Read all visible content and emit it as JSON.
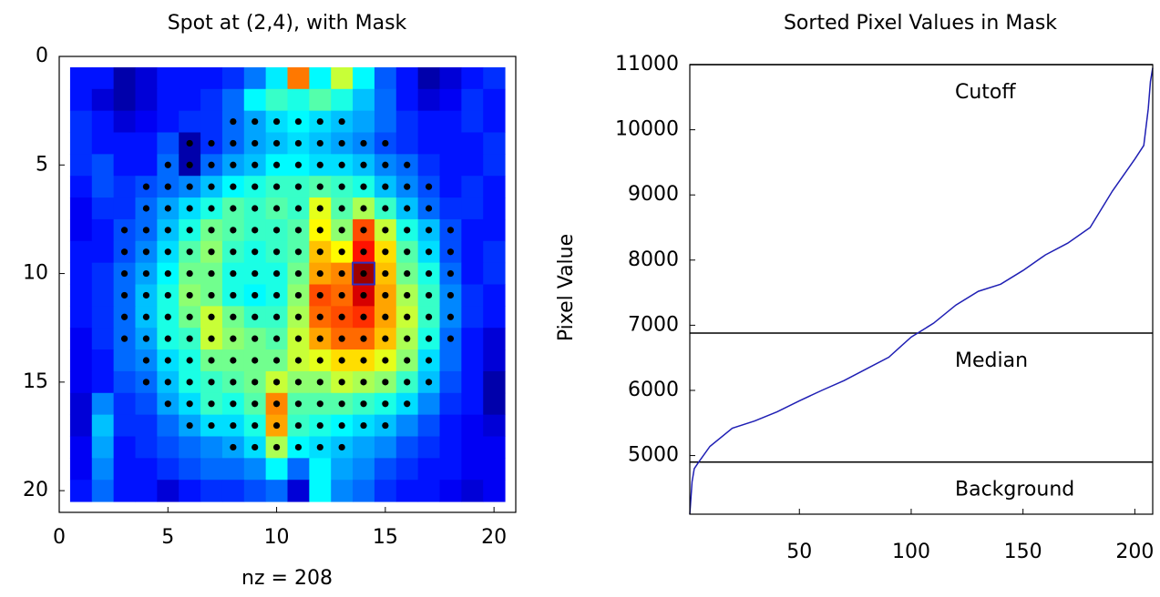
{
  "chart_data": [
    {
      "type": "heatmap",
      "title": "Spot at (2,4), with Mask",
      "xlabel": "nz = 208",
      "xlim": [
        0,
        21
      ],
      "ylim": [
        0,
        21
      ],
      "xticks": [
        0,
        5,
        10,
        15,
        20
      ],
      "yticks": [
        0,
        5,
        10,
        15,
        20
      ],
      "y_reversed": true,
      "colormap": "jet",
      "clim": [
        4000,
        11000
      ],
      "values": [
        [
          5000,
          5000,
          4300,
          4600,
          5000,
          5000,
          5000,
          5200,
          5700,
          6500,
          9300,
          6600,
          8000,
          6600,
          5500,
          5000,
          4300,
          4600,
          5000,
          5200
        ],
        [
          5000,
          4600,
          4300,
          4600,
          5000,
          5000,
          5200,
          5600,
          6600,
          7000,
          6800,
          7200,
          6800,
          6200,
          5600,
          5000,
          4600,
          4800,
          5200,
          5000
        ],
        [
          5200,
          5000,
          4600,
          4800,
          5000,
          5200,
          5200,
          5600,
          6000,
          6400,
          6600,
          6400,
          6200,
          6000,
          5600,
          5200,
          5000,
          5000,
          5200,
          5000
        ],
        [
          5200,
          5000,
          5000,
          5000,
          5400,
          4300,
          5200,
          5600,
          6000,
          6200,
          6400,
          6200,
          6000,
          5800,
          5400,
          5200,
          5000,
          5000,
          5000,
          5200
        ],
        [
          5200,
          5400,
          5000,
          5000,
          5600,
          4300,
          5600,
          6000,
          6200,
          6600,
          6600,
          6400,
          6400,
          6200,
          5800,
          5600,
          5200,
          5000,
          5000,
          5200
        ],
        [
          5000,
          5400,
          5200,
          5400,
          5600,
          5800,
          6200,
          6600,
          6800,
          7000,
          7000,
          7200,
          7000,
          6800,
          6200,
          5800,
          5400,
          5000,
          5200,
          5000
        ],
        [
          4800,
          5200,
          5200,
          5600,
          6000,
          6400,
          6800,
          7200,
          7000,
          7200,
          7000,
          8200,
          7200,
          7800,
          7000,
          6200,
          5600,
          5200,
          5200,
          5000
        ],
        [
          4800,
          5000,
          5400,
          5600,
          6200,
          6800,
          7400,
          7200,
          7000,
          7000,
          7200,
          8400,
          7600,
          9600,
          8000,
          6800,
          6200,
          5400,
          5000,
          5000
        ],
        [
          5000,
          5000,
          5400,
          5800,
          6400,
          7200,
          7600,
          7000,
          6800,
          7000,
          7200,
          8800,
          8400,
          10000,
          8600,
          7200,
          6400,
          5400,
          5000,
          5200
        ],
        [
          5000,
          5200,
          5600,
          6000,
          6600,
          7400,
          7400,
          6800,
          6800,
          6800,
          7400,
          9000,
          9200,
          10800,
          8800,
          7400,
          6800,
          5600,
          5000,
          5200
        ],
        [
          5000,
          5200,
          5600,
          6200,
          6800,
          7600,
          7400,
          6800,
          6600,
          6800,
          7600,
          9600,
          9400,
          10400,
          9000,
          7800,
          7000,
          5800,
          5200,
          5000
        ],
        [
          5000,
          5200,
          5600,
          6200,
          6800,
          7400,
          8000,
          7400,
          7000,
          7000,
          7800,
          9400,
          9600,
          9800,
          9000,
          8000,
          7000,
          5800,
          5200,
          5000
        ],
        [
          4800,
          5200,
          5600,
          6000,
          6800,
          7000,
          8000,
          7600,
          7400,
          7200,
          8000,
          9000,
          9400,
          9400,
          8800,
          7800,
          6800,
          5600,
          5000,
          4600
        ],
        [
          4800,
          5000,
          5600,
          5800,
          6400,
          6800,
          7400,
          7400,
          7400,
          7400,
          8000,
          8200,
          8600,
          8600,
          8200,
          7600,
          6400,
          5600,
          5000,
          4600
        ],
        [
          4800,
          5000,
          5400,
          5600,
          6200,
          6800,
          7000,
          7200,
          7400,
          8000,
          7600,
          7600,
          8000,
          7800,
          7600,
          7000,
          6200,
          5400,
          5000,
          4300
        ],
        [
          4600,
          5800,
          5200,
          5400,
          6000,
          6400,
          7000,
          6800,
          7200,
          9200,
          7200,
          7200,
          7200,
          7000,
          6800,
          6400,
          5800,
          5200,
          5000,
          4300
        ],
        [
          4600,
          6200,
          5200,
          5200,
          5600,
          6000,
          6400,
          6400,
          6800,
          9000,
          7000,
          6800,
          6600,
          6400,
          6200,
          5800,
          5400,
          5000,
          4800,
          4600
        ],
        [
          4800,
          6000,
          5000,
          5200,
          5400,
          5600,
          5800,
          6000,
          6400,
          7800,
          6600,
          6400,
          6200,
          6000,
          5800,
          5400,
          5200,
          5000,
          4800,
          4800
        ],
        [
          4800,
          5800,
          5000,
          5000,
          5200,
          5400,
          5600,
          5600,
          5800,
          6600,
          5600,
          6600,
          6000,
          5800,
          5400,
          5200,
          5000,
          5000,
          4800,
          4800
        ],
        [
          5000,
          5600,
          5000,
          5000,
          4600,
          5000,
          5200,
          5200,
          5400,
          5600,
          4600,
          6600,
          5800,
          5600,
          5200,
          5000,
          5000,
          4800,
          4600,
          4800
        ]
      ],
      "mask_color": "#000000",
      "mask": [
        {
          "row": 3,
          "cols": [
            8,
            9,
            10,
            11,
            12,
            13
          ]
        },
        {
          "row": 4,
          "cols": [
            6,
            7,
            8,
            9,
            10,
            11,
            12,
            13,
            14,
            15
          ]
        },
        {
          "row": 5,
          "cols": [
            5,
            6,
            7,
            8,
            9,
            10,
            11,
            12,
            13,
            14,
            15,
            16
          ]
        },
        {
          "row": 6,
          "cols": [
            4,
            5,
            6,
            7,
            8,
            9,
            10,
            11,
            12,
            13,
            14,
            15,
            16,
            17
          ]
        },
        {
          "row": 7,
          "cols": [
            4,
            5,
            6,
            7,
            8,
            9,
            10,
            11,
            12,
            13,
            14,
            15,
            16,
            17
          ]
        },
        {
          "row": 8,
          "cols": [
            3,
            4,
            5,
            6,
            7,
            8,
            9,
            10,
            11,
            12,
            13,
            14,
            15,
            16,
            17,
            18
          ]
        },
        {
          "row": 9,
          "cols": [
            3,
            4,
            5,
            6,
            7,
            8,
            9,
            10,
            11,
            12,
            13,
            14,
            15,
            16,
            17,
            18
          ]
        },
        {
          "row": 10,
          "cols": [
            3,
            4,
            5,
            6,
            7,
            8,
            9,
            10,
            11,
            12,
            13,
            14,
            15,
            16,
            17,
            18
          ]
        },
        {
          "row": 11,
          "cols": [
            3,
            4,
            5,
            6,
            7,
            8,
            9,
            10,
            11,
            12,
            13,
            14,
            15,
            16,
            17,
            18
          ]
        },
        {
          "row": 12,
          "cols": [
            3,
            4,
            5,
            6,
            7,
            8,
            9,
            10,
            11,
            12,
            13,
            14,
            15,
            16,
            17,
            18
          ]
        },
        {
          "row": 13,
          "cols": [
            3,
            4,
            5,
            6,
            7,
            8,
            9,
            10,
            11,
            12,
            13,
            14,
            15,
            16,
            17,
            18
          ]
        },
        {
          "row": 14,
          "cols": [
            4,
            5,
            6,
            7,
            8,
            9,
            10,
            11,
            12,
            13,
            14,
            15,
            16,
            17
          ]
        },
        {
          "row": 15,
          "cols": [
            4,
            5,
            6,
            7,
            8,
            9,
            10,
            11,
            12,
            13,
            14,
            15,
            16,
            17
          ]
        },
        {
          "row": 16,
          "cols": [
            5,
            6,
            7,
            8,
            9,
            10,
            11,
            12,
            13,
            14,
            15,
            16
          ]
        },
        {
          "row": 17,
          "cols": [
            6,
            7,
            8,
            9,
            10,
            11,
            12,
            13,
            14,
            15
          ]
        },
        {
          "row": 18,
          "cols": [
            8,
            9,
            10,
            11,
            12,
            13
          ]
        }
      ],
      "marker": {
        "x": 14,
        "y": 10,
        "color": "#3030c0"
      }
    },
    {
      "type": "line",
      "title": "Sorted Pixel Values in Mask",
      "ylabel": "Pixel Value",
      "xlim": [
        1,
        208
      ],
      "ylim": [
        4100,
        11000
      ],
      "xticks": [
        50,
        100,
        150,
        200
      ],
      "yticks": [
        5000,
        6000,
        7000,
        8000,
        9000,
        10000,
        11000
      ],
      "series": [
        {
          "color": "#1f1fb4",
          "x": [
            1,
            2,
            3,
            5,
            10,
            20,
            30,
            40,
            50,
            60,
            70,
            80,
            90,
            100,
            110,
            120,
            130,
            140,
            150,
            160,
            170,
            180,
            190,
            200,
            204,
            206,
            207,
            208
          ],
          "values": [
            4100,
            4600,
            4800,
            4900,
            5140,
            5420,
            5530,
            5670,
            5840,
            6000,
            6150,
            6330,
            6510,
            6820,
            7030,
            7310,
            7520,
            7630,
            7840,
            8080,
            8260,
            8500,
            9060,
            9550,
            9760,
            10320,
            10740,
            10950
          ]
        }
      ],
      "hlines": [
        {
          "label": "Cutoff",
          "value": 11000
        },
        {
          "label": "Median",
          "value": 6880
        },
        {
          "label": "Background",
          "value": 4900
        }
      ]
    }
  ]
}
